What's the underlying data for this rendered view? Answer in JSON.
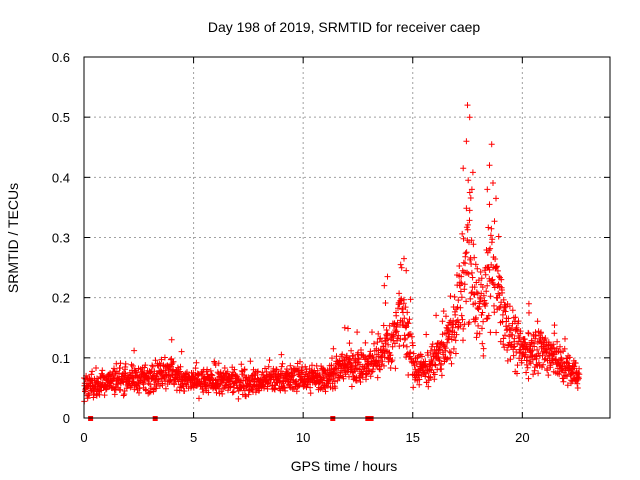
{
  "chart_data": {
    "type": "scatter",
    "title": "Day 198 of 2019, SRMTID for receiver caep",
    "xlabel": "GPS time / hours",
    "ylabel": "SRMTID / TECUs",
    "xlim": [
      0,
      24
    ],
    "ylim": [
      0,
      0.6
    ],
    "x_ticks": [
      0,
      5,
      10,
      15,
      20
    ],
    "y_ticks": [
      0,
      0.1,
      0.2,
      0.3,
      0.4,
      0.5,
      0.6
    ],
    "x_tick_labels": [
      "0",
      "5",
      "10",
      "15",
      "20"
    ],
    "y_tick_labels": [
      "0",
      "0.1",
      "0.2",
      "0.3",
      "0.4",
      "0.5",
      "0.6"
    ],
    "grid": true,
    "marker": "+",
    "color": "#ff0000",
    "series": [
      {
        "name": "SRMTID",
        "trend_x": [
          0.0,
          0.5,
          1.0,
          2.0,
          3.0,
          3.9,
          4.3,
          5.0,
          6.0,
          7.0,
          8.0,
          9.0,
          10.0,
          11.0,
          11.5,
          12.0,
          12.5,
          13.0,
          13.6,
          14.0,
          14.3,
          14.5,
          14.8,
          15.0,
          15.5,
          16.0,
          16.5,
          17.0,
          17.3,
          17.5,
          17.7,
          18.0,
          18.3,
          18.6,
          18.9,
          19.2,
          19.5,
          19.8,
          20.0,
          20.5,
          21.0,
          21.5,
          22.0,
          22.6
        ],
        "trend_y": [
          0.05,
          0.055,
          0.06,
          0.065,
          0.065,
          0.08,
          0.065,
          0.06,
          0.06,
          0.06,
          0.06,
          0.065,
          0.065,
          0.065,
          0.075,
          0.09,
          0.085,
          0.09,
          0.11,
          0.12,
          0.15,
          0.18,
          0.13,
          0.09,
          0.08,
          0.09,
          0.12,
          0.16,
          0.22,
          0.27,
          0.22,
          0.17,
          0.2,
          0.25,
          0.21,
          0.17,
          0.14,
          0.12,
          0.11,
          0.12,
          0.11,
          0.1,
          0.08,
          0.07
        ],
        "spread": [
          0.025,
          0.025,
          0.025,
          0.025,
          0.025,
          0.03,
          0.025,
          0.025,
          0.025,
          0.025,
          0.025,
          0.025,
          0.025,
          0.025,
          0.03,
          0.035,
          0.035,
          0.035,
          0.045,
          0.05,
          0.06,
          0.08,
          0.06,
          0.04,
          0.035,
          0.04,
          0.05,
          0.07,
          0.11,
          0.17,
          0.1,
          0.07,
          0.09,
          0.11,
          0.09,
          0.07,
          0.06,
          0.05,
          0.045,
          0.045,
          0.045,
          0.04,
          0.035,
          0.03
        ],
        "sample_count": 1900,
        "peaks": [
          {
            "x": 17.5,
            "y": 0.52
          },
          {
            "x": 17.6,
            "y": 0.5
          },
          {
            "x": 17.45,
            "y": 0.46
          },
          {
            "x": 18.6,
            "y": 0.455
          },
          {
            "x": 18.5,
            "y": 0.42
          },
          {
            "x": 17.3,
            "y": 0.415
          },
          {
            "x": 18.4,
            "y": 0.38
          },
          {
            "x": 17.7,
            "y": 0.38
          },
          {
            "x": 18.8,
            "y": 0.365
          },
          {
            "x": 18.5,
            "y": 0.355
          },
          {
            "x": 17.6,
            "y": 0.345
          },
          {
            "x": 14.6,
            "y": 0.265
          },
          {
            "x": 14.45,
            "y": 0.255
          },
          {
            "x": 14.7,
            "y": 0.245
          },
          {
            "x": 13.85,
            "y": 0.235
          },
          {
            "x": 13.7,
            "y": 0.22
          },
          {
            "x": 20.3,
            "y": 0.19
          },
          {
            "x": 11.9,
            "y": 0.15
          },
          {
            "x": 4.0,
            "y": 0.13
          }
        ],
        "data_gaps_x": [
          0.3,
          3.25,
          11.35,
          12.95,
          13.1
        ]
      }
    ]
  }
}
